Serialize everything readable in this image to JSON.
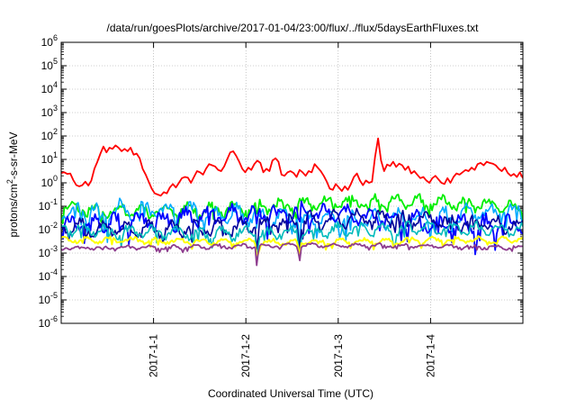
{
  "chart_data": {
    "type": "line",
    "title": "/data/run/goesPlots/archive/2017-01-04/23:00/flux/../flux/5daysEarthFluxes.txt",
    "xlabel": "Coordinated Universal Time (UTC)",
    "ylabel": "protons/cm²-s-sr-MeV",
    "ylabel_parts": {
      "before": "protons/cm",
      "sup": "2",
      "after": "-s-sr-MeV"
    },
    "yscale": "log",
    "ylim": [
      -6,
      6
    ],
    "yticks": [
      {
        "base": "10",
        "exp": "-6",
        "value": -6
      },
      {
        "base": "10",
        "exp": "-5",
        "value": -5
      },
      {
        "base": "10",
        "exp": "-4",
        "value": -4
      },
      {
        "base": "10",
        "exp": "-3",
        "value": -3
      },
      {
        "base": "10",
        "exp": "-2",
        "value": -2
      },
      {
        "base": "10",
        "exp": "-1",
        "value": -1
      },
      {
        "base": "10",
        "exp": "0",
        "value": 0
      },
      {
        "base": "10",
        "exp": "1",
        "value": 1
      },
      {
        "base": "10",
        "exp": "2",
        "value": 2
      },
      {
        "base": "10",
        "exp": "3",
        "value": 3
      },
      {
        "base": "10",
        "exp": "4",
        "value": 4
      },
      {
        "base": "10",
        "exp": "5",
        "value": 5
      },
      {
        "base": "10",
        "exp": "6",
        "value": 6
      }
    ],
    "xlim_days": [
      0,
      5
    ],
    "xticks": [
      {
        "label": "2017-1-1",
        "day": 1
      },
      {
        "label": "2017-1-2",
        "day": 2
      },
      {
        "label": "2017-1-3",
        "day": 3
      },
      {
        "label": "2017-1-4",
        "day": 4
      }
    ],
    "grid": true,
    "series": [
      {
        "color": "#ff0000",
        "width": 1.8,
        "log10_values": [
          0.42,
          0.45,
          0.38,
          0.4,
          0.12,
          -0.1,
          -0.15,
          -0.1,
          0.05,
          -0.12,
          0.1,
          0.6,
          0.9,
          1.25,
          1.55,
          1.3,
          1.5,
          1.45,
          1.6,
          1.5,
          1.35,
          1.45,
          1.35,
          1.5,
          1.2,
          1.25,
          1.05,
          0.6,
          0.35,
          0.05,
          -0.25,
          -0.45,
          -0.5,
          -0.55,
          -0.4,
          -0.45,
          -0.2,
          -0.05,
          -0.2,
          0.0,
          0.2,
          0.25,
          0.22,
          0.0,
          0.25,
          0.5,
          0.45,
          0.35,
          0.6,
          0.8,
          0.75,
          0.7,
          0.55,
          0.5,
          0.7,
          1.0,
          1.3,
          1.35,
          1.15,
          0.9,
          0.6,
          0.45,
          0.65,
          0.55,
          0.8,
          0.95,
          0.85,
          0.45,
          0.6,
          0.5,
          0.95,
          1.05,
          0.9,
          0.35,
          0.3,
          0.45,
          0.5,
          0.42,
          0.25,
          0.55,
          0.45,
          0.3,
          0.5,
          0.45,
          0.8,
          0.65,
          0.5,
          0.3,
          0.05,
          -0.25,
          -0.3,
          -0.05,
          -0.2,
          -0.35,
          -0.15,
          -0.3,
          -0.05,
          0.25,
          0.4,
          0.1,
          -0.1,
          0.1,
          0.0,
          0.05,
          1.1,
          1.9,
          0.95,
          0.5,
          0.78,
          0.72,
          0.9,
          0.68,
          0.82,
          0.75,
          0.55,
          0.7,
          0.4,
          0.5,
          0.35,
          0.2,
          0.25,
          0.1,
          0.0,
          0.2,
          0.3,
          0.15,
          0.0,
          -0.05,
          0.2,
          0.0,
          0.25,
          0.4,
          0.35,
          0.45,
          0.55,
          0.5,
          0.65,
          0.55,
          0.8,
          0.85,
          0.75,
          0.9,
          0.85,
          0.82,
          0.75,
          0.6,
          0.5,
          0.65,
          0.42,
          0.3,
          0.38,
          0.25,
          0.45,
          0.2
        ]
      },
      {
        "color": "#00ee00",
        "width": 1.8,
        "base": -1.0,
        "amp": 0.22,
        "drift": 0.2,
        "seed": 11,
        "dips": [
          [
            2.12,
            0.6
          ],
          [
            2.55,
            0.7
          ],
          [
            0.35,
            0.3
          ]
        ]
      },
      {
        "color": "#00aaff",
        "width": 1.6,
        "base": -1.35,
        "amp": 0.3,
        "drift": 0.2,
        "seed": 23,
        "dips": [
          [
            2.12,
            0.7
          ],
          [
            2.58,
            0.8
          ],
          [
            0.5,
            0.4
          ],
          [
            1.55,
            0.4
          ]
        ]
      },
      {
        "color": "#0000ff",
        "width": 1.8,
        "base": -1.55,
        "amp": 0.32,
        "drift": 0.25,
        "seed": 37,
        "dips": [
          [
            2.12,
            0.8
          ],
          [
            2.58,
            0.9
          ],
          [
            0.6,
            0.4
          ],
          [
            3.75,
            0.3
          ]
        ]
      },
      {
        "color": "#000099",
        "width": 1.6,
        "base": -1.75,
        "amp": 0.28,
        "drift": 0.25,
        "seed": 53,
        "dips": [
          [
            2.12,
            0.9
          ],
          [
            2.58,
            1.0
          ],
          [
            1.1,
            0.3
          ]
        ]
      },
      {
        "color": "#00bbbb",
        "width": 1.6,
        "base": -2.05,
        "amp": 0.22,
        "drift": 0.1,
        "seed": 71,
        "dips": [
          [
            2.12,
            0.9
          ],
          [
            2.58,
            1.1
          ],
          [
            0.65,
            0.4
          ],
          [
            3.65,
            0.3
          ]
        ]
      },
      {
        "color": "#ffff00",
        "width": 2.0,
        "base": -2.48,
        "amp": 0.1,
        "drift": 0.05,
        "seed": 89,
        "dips": [
          [
            2.12,
            0.6
          ],
          [
            2.58,
            0.7
          ]
        ]
      },
      {
        "color": "#8e3c8e",
        "width": 1.8,
        "base": -2.72,
        "amp": 0.07,
        "drift": 0.05,
        "seed": 97,
        "dips": [
          [
            2.12,
            0.9
          ],
          [
            2.58,
            0.5
          ]
        ]
      }
    ]
  }
}
